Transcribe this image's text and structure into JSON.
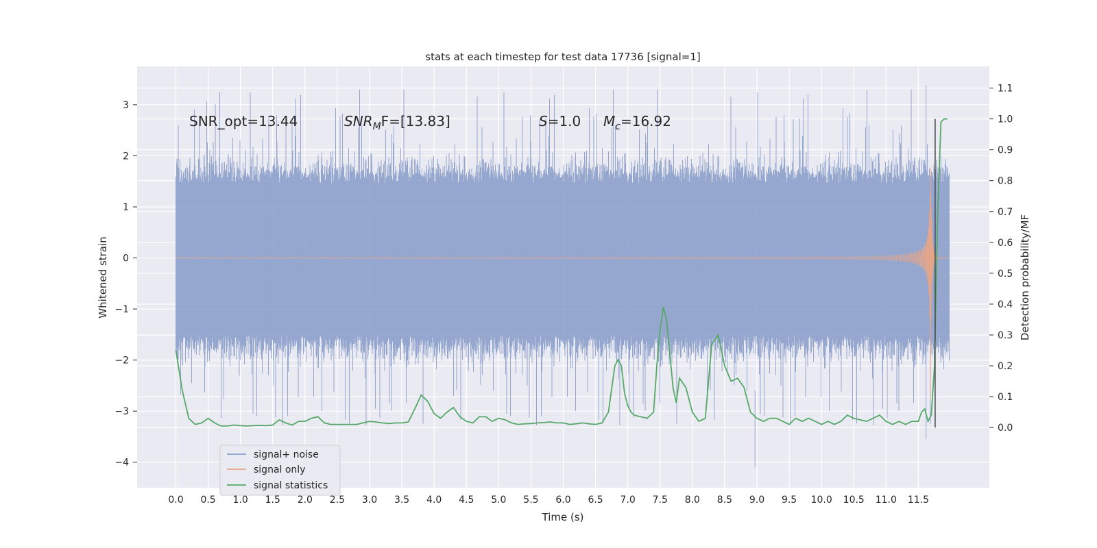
{
  "chart_data": {
    "type": "line",
    "title": "stats at each timestep for test data 17736 [signal=1]",
    "xlabel": "Time (s)",
    "ylabel": "Whitened strain",
    "y2label": "Detection probability/MF",
    "xlim": [
      -0.6,
      12.6
    ],
    "ylim": [
      -4.5,
      3.75
    ],
    "y2lim": [
      -0.195,
      1.17
    ],
    "x_ticks": [
      "0.0",
      "0.5",
      "1.0",
      "1.5",
      "2.0",
      "2.5",
      "3.0",
      "3.5",
      "4.0",
      "4.5",
      "5.0",
      "5.5",
      "6.0",
      "6.5",
      "7.0",
      "7.5",
      "8.0",
      "8.5",
      "9.0",
      "9.5",
      "10.0",
      "10.5",
      "11.0",
      "11.5"
    ],
    "y_ticks": [
      3,
      2,
      1,
      0,
      -1,
      -2,
      -3,
      -4
    ],
    "y_tick_labels": [
      "3",
      "2",
      "1",
      "0",
      "−1",
      "−2",
      "−3",
      "−4"
    ],
    "y2_ticks": [
      1.1,
      1.0,
      0.9,
      0.8,
      0.7,
      0.6,
      0.5,
      0.4,
      0.3,
      0.2,
      0.1,
      0.0
    ],
    "y2_tick_labels": [
      "1.1",
      "1.0",
      "0.9",
      "0.8",
      "0.7",
      "0.6",
      "0.5",
      "0.4",
      "0.3",
      "0.2",
      "0.1",
      "0.0"
    ],
    "grid": true,
    "legend_position": "lower-left",
    "annotations": {
      "snr_opt": "SNR_opt=13.44",
      "snr_mf_main": "SNR",
      "snr_mf_sub": "M",
      "snr_mf_rest": "F=[13.83]",
      "s_main": "S",
      "s_rest": "=1.0",
      "mc_main": "M",
      "mc_sub": "c",
      "mc_rest": "=16.92"
    },
    "series": [
      {
        "name": "signal+ noise",
        "color": "#8da0cb",
        "axis": "left",
        "envelope": {
          "x_start": 0.0,
          "x_end": 11.98,
          "upper_typical": 1.45,
          "lower_typical": -1.5,
          "peak_max": 3.3,
          "peak_min": -4.1
        }
      },
      {
        "name": "signal only",
        "color": "#e8a587",
        "axis": "left",
        "chirp": {
          "x_start": 0.0,
          "x_end": 11.98,
          "merger_time": 11.68,
          "peak_amplitude": 2.8
        }
      },
      {
        "name": "signal statistics",
        "color": "#55a868",
        "axis": "right",
        "x": [
          0.0,
          0.1,
          0.2,
          0.3,
          0.4,
          0.5,
          0.6,
          0.7,
          0.8,
          0.9,
          1.0,
          1.1,
          1.2,
          1.3,
          1.4,
          1.5,
          1.6,
          1.7,
          1.8,
          1.9,
          2.0,
          2.1,
          2.2,
          2.3,
          2.4,
          2.5,
          2.6,
          2.7,
          2.8,
          2.9,
          3.0,
          3.1,
          3.2,
          3.3,
          3.4,
          3.5,
          3.6,
          3.7,
          3.8,
          3.9,
          4.0,
          4.1,
          4.2,
          4.3,
          4.4,
          4.5,
          4.6,
          4.7,
          4.8,
          4.9,
          5.0,
          5.1,
          5.2,
          5.3,
          5.4,
          5.5,
          5.6,
          5.7,
          5.8,
          5.9,
          6.0,
          6.1,
          6.2,
          6.3,
          6.4,
          6.5,
          6.6,
          6.7,
          6.8,
          6.85,
          6.9,
          6.95,
          7.0,
          7.05,
          7.1,
          7.2,
          7.3,
          7.4,
          7.45,
          7.5,
          7.55,
          7.6,
          7.65,
          7.7,
          7.75,
          7.8,
          7.9,
          8.0,
          8.1,
          8.2,
          8.3,
          8.4,
          8.5,
          8.6,
          8.7,
          8.8,
          8.9,
          9.0,
          9.1,
          9.2,
          9.3,
          9.4,
          9.5,
          9.6,
          9.7,
          9.8,
          9.9,
          10.0,
          10.1,
          10.2,
          10.3,
          10.4,
          10.5,
          10.6,
          10.7,
          10.8,
          10.9,
          11.0,
          11.1,
          11.2,
          11.3,
          11.4,
          11.5,
          11.55,
          11.6,
          11.65,
          11.7,
          11.75,
          11.8,
          11.85,
          11.9,
          11.95
        ],
        "y": [
          0.25,
          0.12,
          0.03,
          0.01,
          0.015,
          0.03,
          0.015,
          0.005,
          0.005,
          0.008,
          0.006,
          0.005,
          0.006,
          0.007,
          0.006,
          0.008,
          0.025,
          0.015,
          0.008,
          0.02,
          0.02,
          0.03,
          0.035,
          0.015,
          0.01,
          0.01,
          0.01,
          0.01,
          0.01,
          0.015,
          0.02,
          0.018,
          0.015,
          0.013,
          0.015,
          0.015,
          0.018,
          0.06,
          0.105,
          0.085,
          0.045,
          0.03,
          0.05,
          0.065,
          0.035,
          0.02,
          0.015,
          0.035,
          0.035,
          0.02,
          0.03,
          0.025,
          0.015,
          0.01,
          0.012,
          0.013,
          0.015,
          0.016,
          0.018,
          0.015,
          0.015,
          0.01,
          0.012,
          0.015,
          0.012,
          0.01,
          0.015,
          0.05,
          0.2,
          0.22,
          0.2,
          0.11,
          0.07,
          0.05,
          0.04,
          0.035,
          0.03,
          0.05,
          0.2,
          0.32,
          0.39,
          0.35,
          0.24,
          0.13,
          0.08,
          0.16,
          0.13,
          0.05,
          0.02,
          0.03,
          0.27,
          0.3,
          0.2,
          0.15,
          0.16,
          0.13,
          0.05,
          0.03,
          0.02,
          0.03,
          0.03,
          0.02,
          0.01,
          0.03,
          0.02,
          0.03,
          0.02,
          0.01,
          0.02,
          0.01,
          0.02,
          0.04,
          0.03,
          0.025,
          0.02,
          0.03,
          0.04,
          0.02,
          0.01,
          0.02,
          0.01,
          0.02,
          0.02,
          0.05,
          0.06,
          0.02,
          0.04,
          0.2,
          0.7,
          0.99,
          1.0,
          1.0
        ]
      }
    ]
  }
}
